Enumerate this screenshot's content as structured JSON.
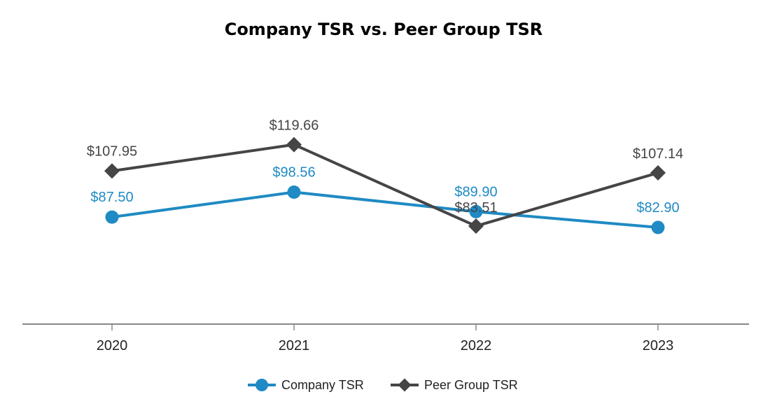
{
  "chart_data": {
    "type": "line",
    "title": "Company TSR vs. Peer Group TSR",
    "xlabel": "",
    "ylabel": "",
    "categories": [
      "2020",
      "2021",
      "2022",
      "2023"
    ],
    "ylim": [
      40,
      140
    ],
    "grid": false,
    "legend_position": "bottom-center",
    "series": [
      {
        "name": "Company TSR",
        "values": [
          87.5,
          98.56,
          89.9,
          82.9
        ],
        "labels": [
          "$87.50",
          "$98.56",
          "$89.90",
          "$82.90"
        ],
        "marker": "circle",
        "color": "#1f8ac3"
      },
      {
        "name": "Peer Group TSR",
        "values": [
          107.95,
          119.66,
          83.51,
          107.14
        ],
        "labels": [
          "$107.95",
          "$119.66",
          "$83.51",
          "$107.14"
        ],
        "marker": "diamond",
        "color": "#454545"
      }
    ]
  },
  "colors": {
    "axis": "#888888",
    "background": "#ffffff"
  }
}
